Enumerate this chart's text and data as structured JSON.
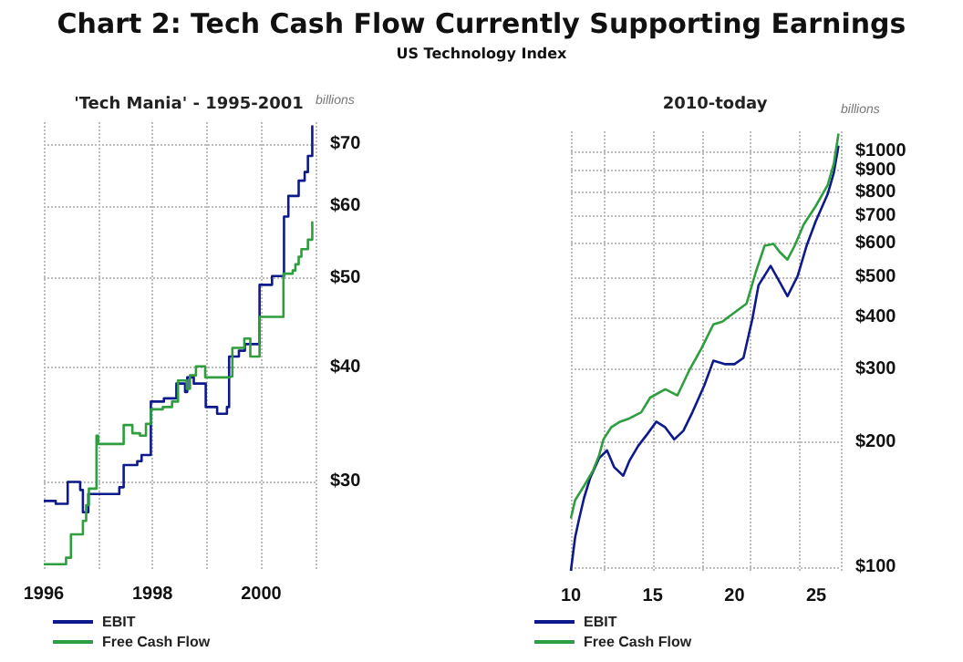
{
  "chart_data": [
    {
      "type": "step",
      "title": "Chart 2: Tech Cash Flow Currently Supporting Earnings",
      "annotations": [
        "US Technology Index"
      ],
      "subtitle": "'Tech Mania' - 1995-2001",
      "ylabel": "billions",
      "log": "y",
      "grid": true,
      "line_style": "solid",
      "legend": "bottom left",
      "xlim": [
        1996,
        2001
      ],
      "xticks": [
        1996,
        1998,
        2000
      ],
      "ylim": [
        24,
        74
      ],
      "yticks": [
        {
          "value": 30,
          "label": "$30"
        },
        {
          "value": 40,
          "label": "$40"
        },
        {
          "value": 50,
          "label": "$50"
        },
        {
          "value": 60,
          "label": "$60"
        },
        {
          "value": 70,
          "label": "$70"
        }
      ],
      "series": [
        {
          "name": "EBIT",
          "color": "#0d1a8c",
          "x": [
            1996.0,
            1996.22,
            1996.44,
            1996.67,
            1996.72,
            1996.82,
            1997.39,
            1997.47,
            1997.72,
            1997.8,
            1997.97,
            1998.21,
            1998.44,
            1998.6,
            1998.64,
            1998.76,
            1998.98,
            1999.19,
            1999.37,
            1999.41,
            1999.59,
            1999.7,
            1999.97,
            2000.2,
            2000.42,
            2000.5,
            2000.69,
            2000.8,
            2000.86,
            2000.94
          ],
          "values": [
            28.6,
            28.4,
            30.0,
            29.4,
            27.8,
            29.1,
            29.6,
            31.3,
            31.6,
            32.1,
            36.7,
            37.0,
            38.4,
            37.6,
            39.0,
            38.4,
            36.2,
            35.6,
            36.2,
            41.1,
            41.7,
            42.4,
            49.2,
            50.3,
            58.4,
            61.5,
            63.9,
            65.3,
            68.0,
            73.4
          ]
        },
        {
          "name": "Free Cash Flow",
          "color": "#2e9e3e",
          "x": [
            1996.0,
            1996.41,
            1996.5,
            1996.72,
            1996.78,
            1996.83,
            1996.97,
            1997.0,
            1997.47,
            1997.63,
            1997.77,
            1997.88,
            1997.97,
            1998.19,
            1998.36,
            1998.47,
            1998.63,
            1998.69,
            1998.8,
            1998.97,
            1999.41,
            1999.47,
            1999.69,
            1999.8,
            1999.97,
            2000.41,
            2000.58,
            2000.63,
            2000.69,
            2000.74,
            2000.86,
            2000.94
          ],
          "values": [
            24.4,
            24.8,
            26.3,
            27.2,
            28.3,
            29.5,
            33.7,
            33.0,
            34.6,
            33.9,
            33.7,
            34.7,
            36.0,
            36.2,
            36.7,
            38.7,
            37.9,
            39.2,
            40.1,
            39.0,
            39.1,
            42.0,
            43.0,
            41.1,
            45.4,
            50.6,
            51.0,
            51.8,
            52.8,
            53.8,
            55.1,
            57.7
          ]
        }
      ]
    },
    {
      "type": "line",
      "subtitle": "2010-today",
      "ylabel": "billions",
      "log": "y",
      "grid": true,
      "line_style": "solid",
      "legend": "bottom left",
      "xlim": [
        10,
        26.5
      ],
      "xticks": [
        10,
        15,
        20,
        25
      ],
      "ylim": [
        97,
        1120
      ],
      "yticks": [
        {
          "value": 100,
          "label": "$100"
        },
        {
          "value": 200,
          "label": "$200"
        },
        {
          "value": 300,
          "label": "$300"
        },
        {
          "value": 400,
          "label": "$400"
        },
        {
          "value": 500,
          "label": "$500"
        },
        {
          "value": 600,
          "label": "$600"
        },
        {
          "value": 700,
          "label": "$700"
        },
        {
          "value": 800,
          "label": "$800"
        },
        {
          "value": 900,
          "label": "$900"
        },
        {
          "value": 1000,
          "label": "$1000"
        }
      ],
      "series": [
        {
          "name": "EBIT",
          "color": "#0d1a8c",
          "x": [
            10.0,
            10.26,
            10.51,
            10.81,
            11.18,
            11.73,
            12.21,
            12.65,
            13.2,
            13.57,
            14.12,
            14.67,
            15.22,
            15.77,
            16.32,
            16.88,
            17.43,
            18.16,
            18.71,
            19.45,
            20.0,
            20.55,
            21.1,
            21.47,
            22.21,
            22.76,
            23.24,
            23.86,
            24.41,
            24.96,
            25.7,
            26.07,
            26.36
          ],
          "values": [
            98,
            118,
            131,
            147,
            164,
            183,
            191,
            174,
            166,
            180,
            196,
            209,
            224,
            217,
            203,
            213,
            236,
            274,
            314,
            308,
            308,
            319,
            397,
            477,
            531,
            486,
            449,
            502,
            594,
            679,
            791,
            889,
            1034
          ]
        },
        {
          "name": "Free Cash Flow",
          "color": "#2e9e3e",
          "x": [
            10.0,
            10.26,
            10.81,
            11.36,
            11.73,
            11.99,
            12.46,
            13.01,
            13.57,
            14.3,
            14.85,
            15.77,
            16.51,
            17.24,
            17.98,
            18.71,
            19.26,
            20.0,
            20.74,
            21.29,
            21.84,
            22.39,
            22.76,
            23.24,
            23.68,
            24.23,
            24.96,
            25.7,
            26.07,
            26.36
          ],
          "values": [
            131,
            145,
            157,
            171,
            186,
            203,
            217,
            224,
            228,
            236,
            256,
            268,
            259,
            298,
            336,
            384,
            390,
            410,
            431,
            511,
            594,
            600,
            574,
            550,
            594,
            668,
            739,
            832,
            935,
            1106
          ]
        }
      ]
    }
  ]
}
